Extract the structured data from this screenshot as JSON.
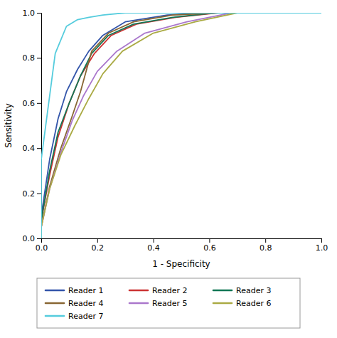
{
  "chart_data": {
    "type": "line",
    "x_label": "1 - Specificity",
    "y_label": "Sensitivity",
    "xlim": [
      0.0,
      1.0
    ],
    "ylim": [
      0.0,
      1.0
    ],
    "xticks": [
      {
        "value": 0.0,
        "label": "0.0"
      },
      0.2,
      0.4,
      0.6,
      0.8,
      {
        "value": 1.0,
        "label": "1.0"
      }
    ],
    "yticks": [
      {
        "value": 0.0,
        "label": "0.0"
      },
      0.2,
      0.4,
      0.6,
      0.8,
      {
        "value": 1.0,
        "label": "1.0"
      }
    ],
    "grid": false,
    "legend": "bottom",
    "series": [
      {
        "name": "Reader 1",
        "color": "#3355aa",
        "x": [
          0.0,
          0.0,
          0.03,
          0.06,
          0.09,
          0.13,
          0.17,
          0.22,
          0.3,
          0.45,
          0.6,
          1.0
        ],
        "values": [
          0.0,
          0.1,
          0.35,
          0.53,
          0.65,
          0.75,
          0.83,
          0.9,
          0.96,
          0.99,
          1.0,
          1.0
        ]
      },
      {
        "name": "Reader 2",
        "color": "#cc3333",
        "x": [
          0.0,
          0.0,
          0.03,
          0.06,
          0.1,
          0.14,
          0.19,
          0.25,
          0.34,
          0.48,
          0.63,
          1.0
        ],
        "values": [
          0.0,
          0.08,
          0.28,
          0.45,
          0.6,
          0.72,
          0.82,
          0.9,
          0.95,
          0.98,
          1.0,
          1.0
        ]
      },
      {
        "name": "Reader 3",
        "color": "#117755",
        "x": [
          0.0,
          0.0,
          0.03,
          0.06,
          0.1,
          0.14,
          0.18,
          0.24,
          0.33,
          0.47,
          0.62,
          1.0
        ],
        "values": [
          0.0,
          0.08,
          0.3,
          0.47,
          0.6,
          0.72,
          0.82,
          0.9,
          0.95,
          0.98,
          1.0,
          1.0
        ]
      },
      {
        "name": "Reader 4",
        "color": "#886633",
        "x": [
          0.0,
          0.0,
          0.03,
          0.07,
          0.11,
          0.14,
          0.18,
          0.24,
          0.33,
          0.47,
          0.64,
          1.0
        ],
        "values": [
          0.0,
          0.05,
          0.23,
          0.4,
          0.54,
          0.65,
          0.83,
          0.91,
          0.96,
          0.99,
          1.0,
          1.0
        ]
      },
      {
        "name": "Reader 5",
        "color": "#aa77cc",
        "x": [
          0.0,
          0.0,
          0.03,
          0.07,
          0.11,
          0.15,
          0.2,
          0.27,
          0.37,
          0.52,
          0.68,
          1.0
        ],
        "values": [
          0.0,
          0.05,
          0.22,
          0.38,
          0.52,
          0.63,
          0.74,
          0.83,
          0.91,
          0.96,
          1.0,
          1.0
        ]
      },
      {
        "name": "Reader 6",
        "color": "#aaaa44",
        "x": [
          0.0,
          0.0,
          0.03,
          0.07,
          0.12,
          0.17,
          0.22,
          0.29,
          0.4,
          0.55,
          0.7,
          1.0
        ],
        "values": [
          0.0,
          0.05,
          0.22,
          0.37,
          0.5,
          0.62,
          0.73,
          0.83,
          0.91,
          0.96,
          1.0,
          1.0
        ]
      },
      {
        "name": "Reader 7",
        "color": "#55ccdd",
        "x": [
          0.0,
          0.0,
          0.05,
          0.09,
          0.13,
          0.17,
          0.22,
          0.3,
          0.42,
          0.58,
          1.0
        ],
        "values": [
          0.0,
          0.35,
          0.82,
          0.94,
          0.97,
          0.98,
          0.99,
          1.0,
          1.0,
          1.0,
          1.0
        ]
      }
    ]
  }
}
